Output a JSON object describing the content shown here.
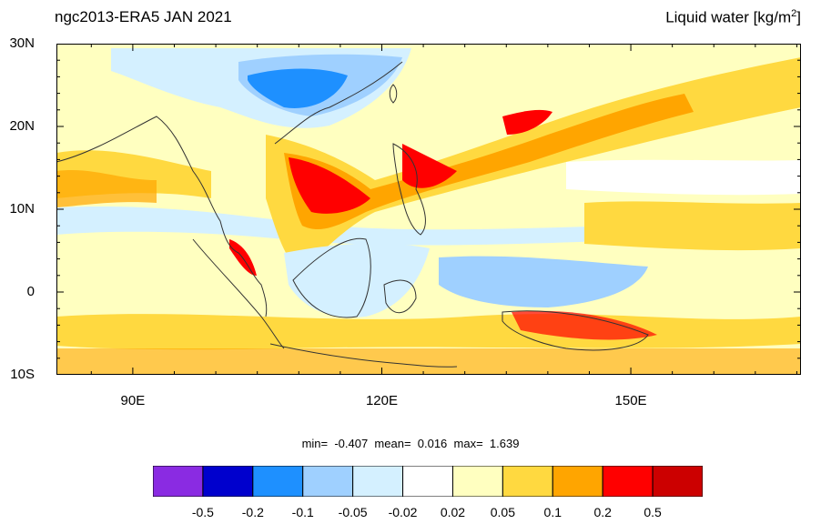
{
  "titles": {
    "left": "ngc2013-ERA5 JAN 2021",
    "right_main": "Liquid water  [kg/m",
    "right_sup": "2",
    "right_end": "]"
  },
  "axes": {
    "lat_labels": [
      "30N",
      "20N",
      "10N",
      "0",
      "10S"
    ],
    "lon_labels": [
      "90E",
      "120E",
      "150E"
    ],
    "lon_range": [
      80.8,
      170.5
    ],
    "lat_range": [
      -10,
      30
    ]
  },
  "stats": {
    "text": "min=  -0.407  mean=  0.016  max=  1.639"
  },
  "colorbar": {
    "labels": [
      "-0.5",
      "-0.2",
      "-0.1",
      "-0.05",
      "-0.02",
      "0.02",
      "0.05",
      "0.1",
      "0.2",
      "0.5"
    ],
    "colors": [
      "#8a2be2",
      "#0000cd",
      "#1e90ff",
      "#9fd0ff",
      "#d4f0ff",
      "#ffffff",
      "#ffffc0",
      "#ffd940",
      "#ffa500",
      "#ff0000",
      "#cc0000"
    ]
  }
}
